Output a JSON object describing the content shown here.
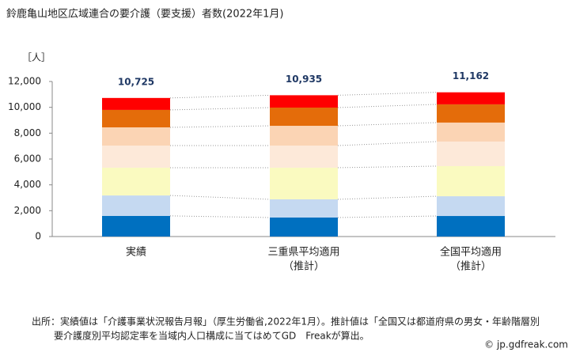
{
  "chart_data": {
    "type": "stacked_bar",
    "title": "鈴鹿亀山地区広域連合の要介護（要支援）者数(2022年1月)",
    "y_unit_label": "［人］",
    "categories": [
      [
        "実績"
      ],
      [
        "三重県平均適用",
        "（推計）"
      ],
      [
        "全国平均適用",
        "（推計）"
      ]
    ],
    "series": [
      {
        "color": "#0070c0",
        "values": [
          1600,
          1470,
          1590
        ]
      },
      {
        "color": "#c5d9f1",
        "values": [
          1580,
          1410,
          1530
        ]
      },
      {
        "color": "#fafac0",
        "values": [
          2150,
          2450,
          2330
        ]
      },
      {
        "color": "#fde9d9",
        "values": [
          1710,
          1710,
          1900
        ]
      },
      {
        "color": "#fbd4b4",
        "values": [
          1410,
          1530,
          1470
        ]
      },
      {
        "color": "#e46c0a",
        "values": [
          1350,
          1410,
          1410
        ]
      },
      {
        "color": "#ff0000",
        "values": [
          925,
          955,
          932
        ]
      }
    ],
    "totals": [
      10725,
      10935,
      11162
    ],
    "total_labels": [
      "10,725",
      "10,935",
      "11,162"
    ],
    "ylim": [
      0,
      12000
    ],
    "yticks": [
      0,
      {
        "value": 2000,
        "label": "2,000"
      },
      {
        "value": 4000,
        "label": "4,000"
      },
      {
        "value": 6000,
        "label": "6,000"
      },
      {
        "value": 8000,
        "label": "8,000"
      },
      {
        "value": 10000,
        "label": "10,000"
      },
      {
        "value": 12000,
        "label": "12,000"
      }
    ],
    "notes": [
      "出所：実績値は「介護事業状況報告月報」（厚生労働省,2022年1月）。推計値は「全国又は都道府県の男女・年齢階層別",
      "要介護度別平均認定率を当域内人口構成に当てはめてGD　Freakが算出。"
    ],
    "copyright": "© jp.gdfreak.com"
  }
}
